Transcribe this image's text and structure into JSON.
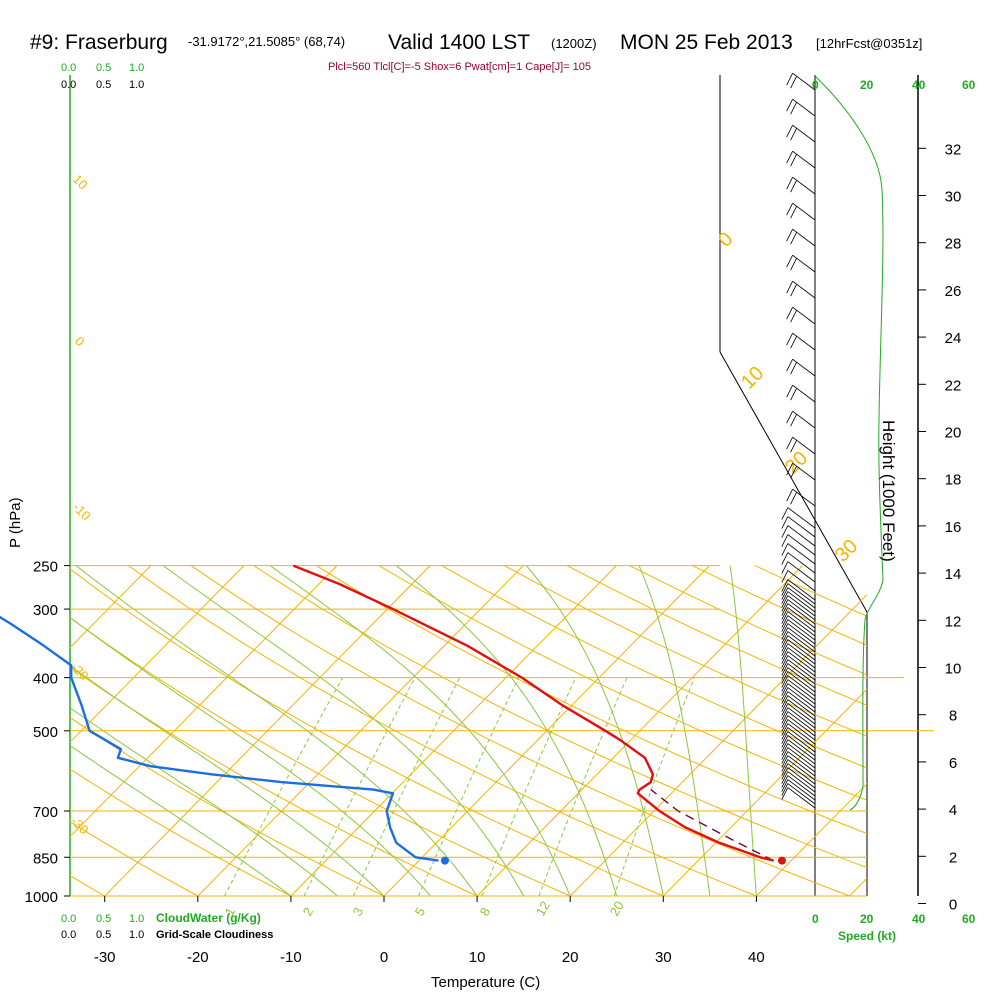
{
  "header": {
    "station": "#9: Fraserburg",
    "coords": "-31.9172°,21.5085° (68,74)",
    "valid": "Valid 1400 LST",
    "utc": "(1200Z)",
    "date": "MON 25 Feb 2013",
    "forecast": "[12hrFcst@0351z]",
    "params": "Plcl=560 Tlcl[C]=-5 Shox=6 Pwat[cm]=1 Cape[J]= 105"
  },
  "colors": {
    "temperature": "#e01010",
    "dewpoint": "#1a6fe0",
    "isotherm": "#f5b400",
    "dry_adiabat": "#f5b400",
    "moist_adiabat": "#8cc63f",
    "mixing_ratio": "#8cc63f",
    "parcel": "#6a0a4a",
    "cloudwater": "#22aa22"
  },
  "scales": {
    "cloudwater_top": [
      "0.0",
      "0.5",
      "1.0"
    ],
    "cloudiness_top": [
      "0.0",
      "0.5",
      "1.0"
    ],
    "cloudwater_bottom": [
      "0.0",
      "0.5",
      "1.0"
    ],
    "cloudwater_label": "CloudWater (g/Kg)",
    "cloudiness_bottom": [
      "0.0",
      "0.5",
      "1.0"
    ],
    "cloudiness_label": "Grid-Scale Cloudiness",
    "speed_ticks": [
      "0",
      "20",
      "40",
      "60"
    ],
    "speed_label": "Speed (kt)"
  },
  "chart_data": {
    "type": "skew-t",
    "xlabel": "Temperature (C)",
    "ylabel": "P (hPa)",
    "y2label": "Height (1000 Feet)",
    "xlim": [
      -30,
      40
    ],
    "x_ticks": [
      "-30",
      "-20",
      "-10",
      "0",
      "10",
      "20",
      "30",
      "40"
    ],
    "pressure_ticks": [
      "250",
      "300",
      "400",
      "500",
      "700",
      "850",
      "1000"
    ],
    "height_ticks": [
      "0",
      "2",
      "4",
      "6",
      "8",
      "10",
      "12",
      "14",
      "16",
      "18",
      "20",
      "22",
      "24",
      "26",
      "28",
      "30",
      "32"
    ],
    "isotherm_labels": [
      "-10",
      "0",
      "10",
      "20",
      "30"
    ],
    "theta_labels": [
      "10",
      "0",
      "-10",
      "-20",
      "-30"
    ],
    "mixing_ratio_labels": [
      "1",
      "2",
      "3",
      "5",
      "8",
      "12",
      "20"
    ],
    "temperature_profile": [
      {
        "p": 862,
        "t": 38.1
      },
      {
        "p": 850,
        "t": 36.3
      },
      {
        "p": 800,
        "t": 30.4
      },
      {
        "p": 750,
        "t": 25.1
      },
      {
        "p": 700,
        "t": 20.6
      },
      {
        "p": 650,
        "t": 16.4
      },
      {
        "p": 640,
        "t": 16.2
      },
      {
        "p": 620,
        "t": 16.6
      },
      {
        "p": 600,
        "t": 16.0
      },
      {
        "p": 560,
        "t": 13.4
      },
      {
        "p": 520,
        "t": 8.9
      },
      {
        "p": 500,
        "t": 6.3
      },
      {
        "p": 450,
        "t": -0.9
      },
      {
        "p": 400,
        "t": -8.3
      },
      {
        "p": 350,
        "t": -17.5
      },
      {
        "p": 300,
        "t": -29.4
      },
      {
        "p": 270,
        "t": -37.8
      },
      {
        "p": 250,
        "t": -44.7
      }
    ],
    "dewpoint_profile": [
      {
        "p": 862,
        "t": 2.1
      },
      {
        "p": 850,
        "t": -0.7
      },
      {
        "p": 800,
        "t": -4.3
      },
      {
        "p": 750,
        "t": -6.6
      },
      {
        "p": 700,
        "t": -8.7
      },
      {
        "p": 650,
        "t": -9.9
      },
      {
        "p": 640,
        "t": -12.4
      },
      {
        "p": 620,
        "t": -23.1
      },
      {
        "p": 600,
        "t": -31.4
      },
      {
        "p": 580,
        "t": -38.8
      },
      {
        "p": 560,
        "t": -43.2
      },
      {
        "p": 540,
        "t": -43.8
      },
      {
        "p": 500,
        "t": -49.1
      },
      {
        "p": 450,
        "t": -52.6
      },
      {
        "p": 400,
        "t": -56.7
      },
      {
        "p": 380,
        "t": -58.0
      },
      {
        "p": 350,
        "t": -63.0
      },
      {
        "p": 320,
        "t": -68.7
      },
      {
        "p": 300,
        "t": -73.0
      },
      {
        "p": 280,
        "t": -78.9
      },
      {
        "p": 250,
        "t": -86.6
      }
    ],
    "parcel_profile": [
      {
        "p": 862,
        "t": 38.1
      },
      {
        "p": 800,
        "t": 32.4
      },
      {
        "p": 700,
        "t": 22.6
      },
      {
        "p": 640,
        "t": 17.4
      }
    ],
    "surface_temperature": {
      "p": 862,
      "t": 39.0
    },
    "surface_dewpoint": {
      "p": 862,
      "t": 2.8
    }
  }
}
